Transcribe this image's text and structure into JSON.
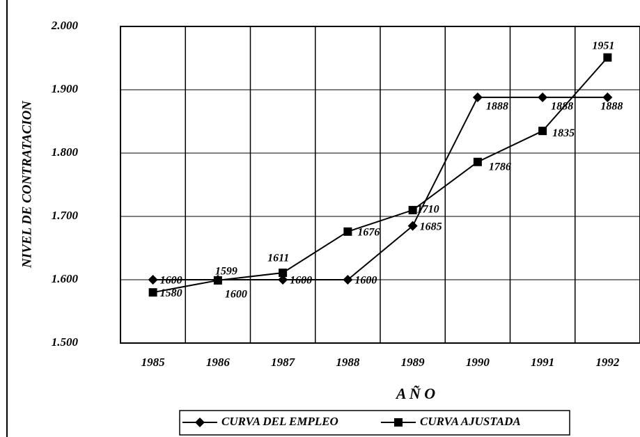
{
  "chart_data": {
    "type": "line",
    "x_label": "A Ñ O",
    "y_label": "NIVEL DE CONTRATACION",
    "categories": [
      "1985",
      "1986",
      "1987",
      "1988",
      "1989",
      "1990",
      "1991",
      "1992"
    ],
    "series": [
      {
        "name": "CURVA DEL EMPLEO",
        "color": "#000000",
        "marker": "diamond",
        "values": [
          1600,
          1600,
          1600,
          1600,
          1685,
          1888,
          1888,
          1888
        ]
      },
      {
        "name": "CURVA AJUSTADA",
        "color": "#000000",
        "marker": "square",
        "values": [
          1580,
          1599,
          1611,
          1676,
          1710,
          1786,
          1835,
          1951
        ]
      }
    ],
    "ylim": [
      1500,
      2000
    ],
    "yticks": [
      {
        "value": 1500,
        "label": "1.500"
      },
      {
        "value": 1600,
        "label": "1.600"
      },
      {
        "value": 1700,
        "label": "1.700"
      },
      {
        "value": 1800,
        "label": "1.800"
      },
      {
        "value": 1900,
        "label": "1.900"
      },
      {
        "value": 2000,
        "label": "2.000"
      }
    ],
    "grid": true,
    "legend": "bottom"
  }
}
